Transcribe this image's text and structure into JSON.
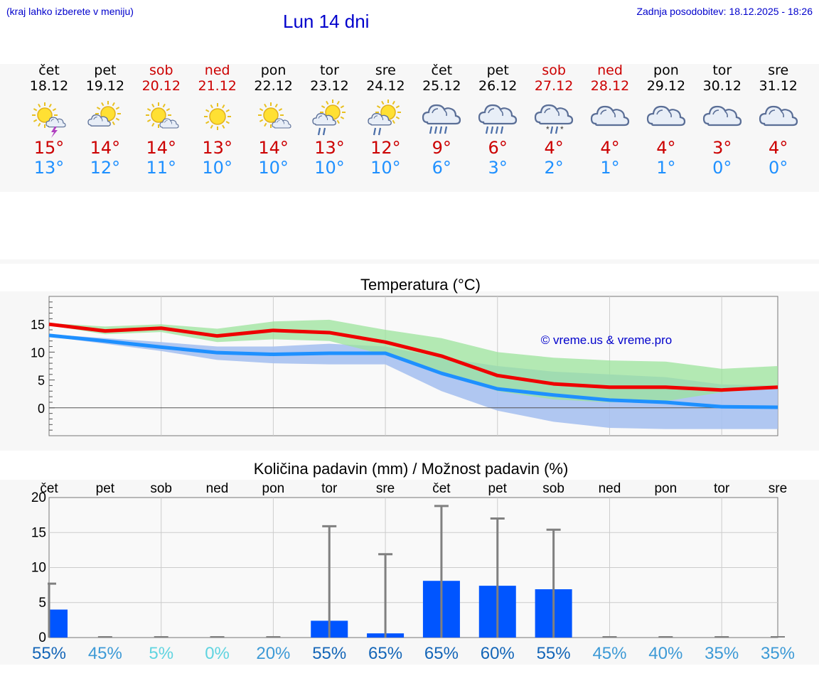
{
  "header": {
    "hint": "(kraj lahko izberete v meniju)",
    "title": "Lun 14 dni",
    "updated": "Zadnja posodobitev: 18.12.2025 - 18:26"
  },
  "days": [
    {
      "dow": "čet",
      "date": "18.12",
      "weekend": false,
      "icon": "sun-cloud-lightning-icon",
      "tmax": "15°",
      "tmin": "13°"
    },
    {
      "dow": "pet",
      "date": "19.12",
      "weekend": false,
      "icon": "sun-cloud-icon",
      "tmax": "14°",
      "tmin": "12°"
    },
    {
      "dow": "sob",
      "date": "20.12",
      "weekend": true,
      "icon": "sun-small-cloud-icon",
      "tmax": "14°",
      "tmin": "11°"
    },
    {
      "dow": "ned",
      "date": "21.12",
      "weekend": true,
      "icon": "sun-icon",
      "tmax": "13°",
      "tmin": "10°"
    },
    {
      "dow": "pon",
      "date": "22.12",
      "weekend": false,
      "icon": "sun-small-cloud-icon",
      "tmax": "14°",
      "tmin": "10°"
    },
    {
      "dow": "tor",
      "date": "23.12",
      "weekend": false,
      "icon": "sun-cloud-rain-icon",
      "tmax": "13°",
      "tmin": "10°"
    },
    {
      "dow": "sre",
      "date": "24.12",
      "weekend": false,
      "icon": "sun-cloud-rain-icon",
      "tmax": "12°",
      "tmin": "10°"
    },
    {
      "dow": "čet",
      "date": "25.12",
      "weekend": false,
      "icon": "cloud-heavy-rain-icon",
      "tmax": "9°",
      "tmin": "6°"
    },
    {
      "dow": "pet",
      "date": "26.12",
      "weekend": false,
      "icon": "cloud-heavy-rain-icon",
      "tmax": "6°",
      "tmin": "3°"
    },
    {
      "dow": "sob",
      "date": "27.12",
      "weekend": true,
      "icon": "cloud-snow-icon",
      "tmax": "4°",
      "tmin": "2°"
    },
    {
      "dow": "ned",
      "date": "28.12",
      "weekend": true,
      "icon": "cloud-icon",
      "tmax": "4°",
      "tmin": "1°"
    },
    {
      "dow": "pon",
      "date": "29.12",
      "weekend": false,
      "icon": "cloud-icon",
      "tmax": "4°",
      "tmin": "1°"
    },
    {
      "dow": "tor",
      "date": "30.12",
      "weekend": false,
      "icon": "cloud-icon",
      "tmax": "3°",
      "tmin": "0°"
    },
    {
      "dow": "sre",
      "date": "31.12",
      "weekend": false,
      "icon": "cloud-icon",
      "tmax": "4°",
      "tmin": "0°"
    }
  ],
  "colors": {
    "max_line": "#ee0000",
    "min_line": "#1e90ff",
    "max_band": "#9be39b",
    "min_band": "#a7c1f0",
    "overlap_band": "#7fc6a4",
    "precip_bar": "#0055ff",
    "error_bar": "#808080"
  },
  "chart_data": [
    {
      "type": "line",
      "title": "Temperatura (°C)",
      "watermark": "© vreme.us & vreme.pro",
      "x": [
        0,
        1,
        2,
        3,
        4,
        5,
        6,
        7,
        8,
        9,
        10,
        11,
        12,
        13
      ],
      "ylim": [
        -5,
        20
      ],
      "yticks": [
        0,
        5,
        10,
        15
      ],
      "ytick_labels": [
        "0",
        "5",
        "10",
        "15"
      ],
      "series": [
        {
          "name": "max",
          "values": [
            15,
            13.8,
            14.3,
            12.9,
            13.9,
            13.5,
            11.8,
            9.3,
            5.8,
            4.3,
            3.7,
            3.7,
            3.2,
            3.7
          ]
        },
        {
          "name": "min",
          "values": [
            13,
            12,
            10.9,
            9.9,
            9.6,
            9.8,
            9.8,
            6.2,
            3.4,
            2.3,
            1.4,
            1,
            0.2,
            0.1
          ]
        }
      ],
      "max_band": {
        "low": [
          14.8,
          13.2,
          13.6,
          11.8,
          12.3,
          12.0,
          9.5,
          6.5,
          3.0,
          1.5,
          1.0,
          1.2,
          2.8,
          3.5
        ],
        "high": [
          15.2,
          14.6,
          15.0,
          14.2,
          15.5,
          15.8,
          14.0,
          12.5,
          10.0,
          9.0,
          8.5,
          8.3,
          7.0,
          7.5
        ]
      },
      "min_band": {
        "low": [
          12.8,
          11.5,
          10.2,
          8.6,
          8.0,
          7.8,
          7.8,
          3.0,
          -0.5,
          -2.5,
          -3.6,
          -3.8,
          -3.8,
          -3.8
        ],
        "high": [
          13.2,
          12.5,
          11.8,
          11.0,
          11.0,
          11.5,
          11.0,
          9.0,
          7.5,
          6.5,
          6.0,
          5.5,
          4.2,
          4.0
        ]
      }
    },
    {
      "type": "bar",
      "title": "Količina padavin (mm) / Možnost padavin (%)",
      "categories": [
        "čet",
        "pet",
        "sob",
        "ned",
        "pon",
        "tor",
        "sre",
        "čet",
        "pet",
        "sob",
        "ned",
        "pon",
        "tor",
        "sre"
      ],
      "ylim": [
        0,
        20
      ],
      "yticks": [
        0,
        5,
        10,
        15,
        20
      ],
      "ytick_labels": [
        "0",
        "5",
        "10",
        "15",
        "20"
      ],
      "values": [
        4,
        0,
        0,
        0,
        0,
        2.4,
        0.6,
        8.1,
        7.4,
        6.9,
        0,
        0,
        0,
        0
      ],
      "error_high": [
        7.7,
        0,
        0,
        0,
        0,
        15.9,
        11.9,
        18.8,
        17.0,
        15.4,
        0,
        0,
        0,
        0
      ],
      "chance": [
        "55%",
        "45%",
        "5%",
        "0%",
        "20%",
        "55%",
        "65%",
        "65%",
        "60%",
        "55%",
        "45%",
        "40%",
        "35%",
        "35%"
      ],
      "chance_colors": [
        "#1466b8",
        "#3d9ad6",
        "#60d4e0",
        "#60d4e0",
        "#3d9ad6",
        "#1466b8",
        "#1466b8",
        "#1466b8",
        "#1466b8",
        "#1466b8",
        "#3d9ad6",
        "#3d9ad6",
        "#3d9ad6",
        "#3d9ad6"
      ]
    }
  ]
}
